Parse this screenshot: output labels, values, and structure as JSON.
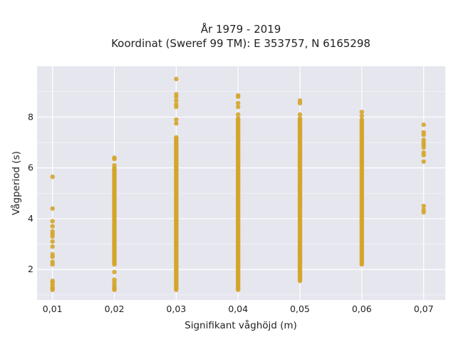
{
  "chart_data": {
    "type": "scatter",
    "title": "År 1979 - 2019",
    "subtitle": "Koordinat (Sweref 99 TM): E 353757, N 6165298",
    "xlabel": "Signifikant våghöjd (m)",
    "ylabel": "Vågperiod (s)",
    "xlim": [
      0.0075,
      0.0735
    ],
    "ylim": [
      0.8,
      10.0
    ],
    "x_ticks": [
      0.01,
      0.02,
      0.03,
      0.04,
      0.05,
      0.06,
      0.07
    ],
    "x_tick_labels": [
      "0,01",
      "0,02",
      "0,03",
      "0,04",
      "0,05",
      "0,06",
      "0,07"
    ],
    "y_ticks": [
      2,
      4,
      6,
      8
    ],
    "y_tick_labels": [
      "2",
      "4",
      "6",
      "8"
    ],
    "grid": true,
    "marker_color": "#d4a52a",
    "plot_background": "#e6e6ef",
    "columns": [
      {
        "x": 0.01,
        "dense_ranges": [],
        "points": [
          1.2,
          1.25,
          1.3,
          1.4,
          1.5,
          1.55,
          2.2,
          2.3,
          2.5,
          2.6,
          2.9,
          3.1,
          3.3,
          3.4,
          3.5,
          3.7,
          3.9,
          4.4,
          5.65
        ]
      },
      {
        "x": 0.02,
        "dense_ranges": [
          [
            2.2,
            5.95
          ]
        ],
        "points": [
          1.2,
          1.25,
          1.3,
          1.4,
          1.5,
          1.6,
          1.9,
          6.0,
          6.1,
          6.35,
          6.4
        ]
      },
      {
        "x": 0.03,
        "dense_ranges": [
          [
            1.2,
            7.2
          ]
        ],
        "points": [
          7.75,
          7.9,
          8.4,
          8.5,
          8.65,
          8.8,
          8.9,
          9.5
        ]
      },
      {
        "x": 0.04,
        "dense_ranges": [
          [
            1.2,
            7.95
          ]
        ],
        "points": [
          8.1,
          8.4,
          8.55,
          8.8,
          8.85
        ]
      },
      {
        "x": 0.05,
        "dense_ranges": [
          [
            1.55,
            7.95
          ]
        ],
        "points": [
          8.1,
          8.55,
          8.65
        ]
      },
      {
        "x": 0.06,
        "dense_ranges": [
          [
            2.2,
            7.9
          ]
        ],
        "points": [
          8.05,
          8.2
        ]
      },
      {
        "x": 0.07,
        "dense_ranges": [],
        "points": [
          4.25,
          4.35,
          4.5,
          6.25,
          6.5,
          6.6,
          6.8,
          6.9,
          7.0,
          7.1,
          7.3,
          7.4,
          7.7
        ]
      }
    ]
  }
}
